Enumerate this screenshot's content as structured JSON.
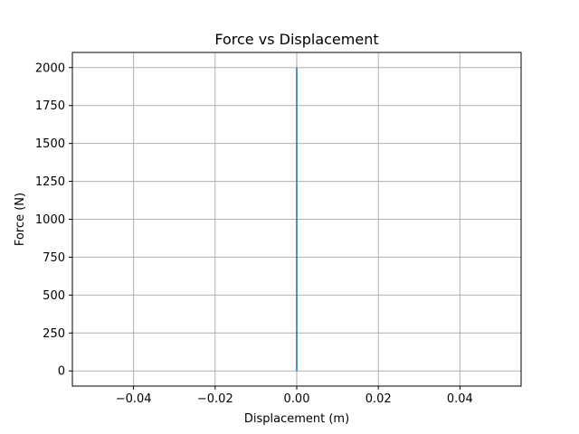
{
  "chart_data": {
    "type": "line",
    "title": "Force vs Displacement",
    "xlabel": "Displacement (m)",
    "ylabel": "Force (N)",
    "xlim": [
      -0.055,
      0.055
    ],
    "ylim": [
      -100,
      2100
    ],
    "xticks": [
      -0.04,
      -0.02,
      0.0,
      0.02,
      0.04
    ],
    "xtick_labels": [
      "−0.04",
      "−0.02",
      "0.00",
      "0.02",
      "0.04"
    ],
    "yticks": [
      0,
      250,
      500,
      750,
      1000,
      1250,
      1500,
      1750,
      2000
    ],
    "ytick_labels": [
      "0",
      "250",
      "500",
      "750",
      "1000",
      "1250",
      "1500",
      "1750",
      "2000"
    ],
    "grid": true,
    "series": [
      {
        "x": [
          0.0,
          0.0
        ],
        "y": [
          0,
          2000
        ],
        "color": "#1f77b4"
      }
    ]
  }
}
